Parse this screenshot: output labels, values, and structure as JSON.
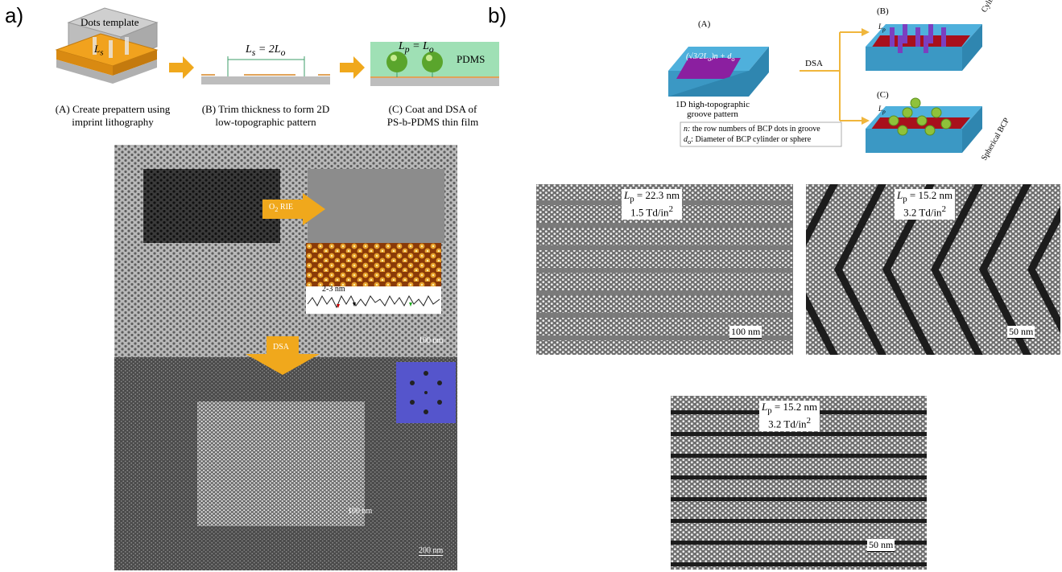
{
  "panel_a": {
    "label": "a)",
    "schematic": {
      "template_label": "Dots template",
      "ls_label": "L",
      "ls_sub": "s",
      "trim_label": "L",
      "trim_sub": "s",
      "trim_rest": " = 2L",
      "trim_sub2": "o",
      "coat_label": "L",
      "coat_sub": "p",
      "coat_rest": " = L",
      "coat_sub2": "o",
      "pdms_label": "PDMS",
      "caption_A_line1": "(A) Create prepattern using",
      "caption_A_line2": "imprint lithography",
      "caption_B_line1": "(B) Trim thickness to form 2D",
      "caption_B_line2": "low-topographic pattern",
      "caption_C_line1": "(C) Coat and DSA of",
      "caption_C_line2": "PS-b-PDMS thin film"
    },
    "sem": {
      "arrow1_label": "O",
      "arrow1_sub": "2",
      "arrow1_rest": " RIE",
      "afm_label": "2-3 nm",
      "scale_top": "100 nm",
      "arrow2_label": "DSA",
      "scale_mid": "100 nm",
      "scale_bottom": "200 nm"
    }
  },
  "panel_b": {
    "label": "b)",
    "schematic": {
      "A_label": "(A)",
      "B_label": "(B)",
      "C_label": "(C)",
      "formula": "(√3/2L",
      "formula_sub": "o",
      "formula_rest": ")n + d",
      "formula_sub2": "o",
      "dsa_label": "DSA",
      "groove_line1": "1D high-topographic",
      "groove_line2": "groove pattern",
      "cyl_label": "Cylindrical BCP",
      "sph_label": "Spherical BCP",
      "lp_label": "L",
      "lp_sub": "p",
      "legend_n": "n:",
      "legend_n_text": "the row numbers of BCP dots in groove",
      "legend_d": "d",
      "legend_d_sub": "o",
      "legend_d_text": ": Diameter of BCP cylinder or sphere"
    },
    "sem1": {
      "lp": "L",
      "lp_sub": "p",
      "lp_rest": " = 22.3 nm",
      "density": "1.5 Td/in",
      "density_sup": "2",
      "scale": "100 nm"
    },
    "sem2": {
      "lp": "L",
      "lp_sub": "p",
      "lp_rest": " = 15.2 nm",
      "density": "3.2 Td/in",
      "density_sup": "2",
      "scale": "50 nm"
    },
    "sem3": {
      "lp": "L",
      "lp_sub": "p",
      "lp_rest": " = 15.2 nm",
      "density": "3.2 Td/in",
      "density_sup": "2",
      "scale": "50 nm"
    }
  },
  "colors": {
    "arrow": "#f0a81c",
    "orange_layer": "#f1a21e",
    "blue_wall": "#4fb0dc",
    "purple": "#8b1fa0",
    "red": "#a8101c",
    "green_sphere": "#8fc23a",
    "pdms_green": "#8fdcae"
  }
}
